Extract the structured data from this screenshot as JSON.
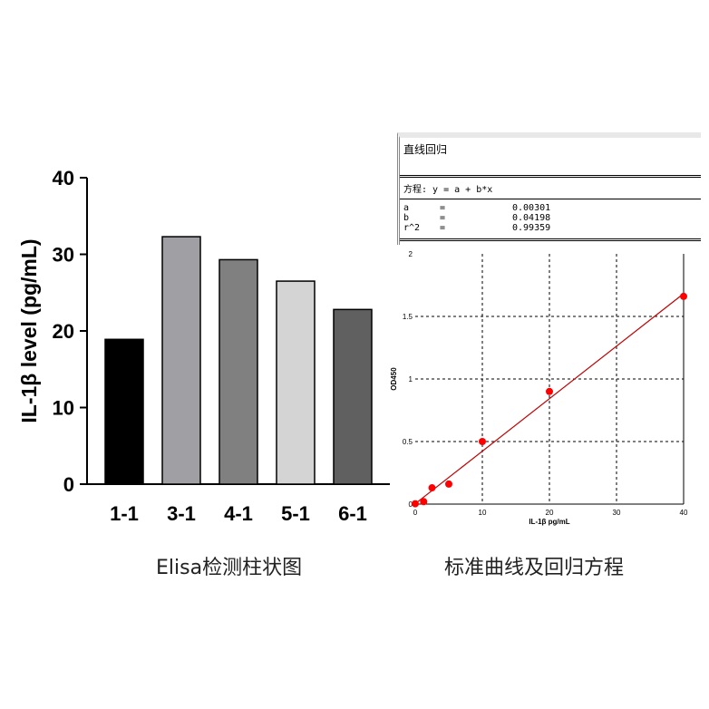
{
  "captions": {
    "left": "Elisa检测柱状图",
    "right": "标准曲线及回归方程"
  },
  "regression_panel": {
    "title": "直线回归",
    "equation": "方程: y = a + b*x",
    "params": [
      {
        "name": "a",
        "eq": "=",
        "value": "0.00301"
      },
      {
        "name": "b",
        "eq": "=",
        "value": "0.04198"
      },
      {
        "name": "r^2",
        "eq": "=",
        "value": "0.99359"
      }
    ]
  },
  "chart_data": [
    {
      "type": "bar",
      "categories": [
        "1-1",
        "3-1",
        "4-1",
        "5-1",
        "6-1"
      ],
      "values": [
        18.9,
        32.3,
        29.3,
        26.5,
        22.8
      ],
      "colors": [
        "#000000",
        "#a0a0a4",
        "#808080",
        "#d4d4d4",
        "#606060"
      ],
      "ylabel": "IL-1β level (pg/mL)",
      "ylim": [
        0,
        40
      ],
      "yticks": [
        0,
        10,
        20,
        30,
        40
      ],
      "grid": false
    },
    {
      "type": "scatter",
      "x": [
        0,
        1.25,
        2.5,
        5,
        10,
        20,
        40
      ],
      "y": [
        0.003,
        0.02,
        0.13,
        0.16,
        0.5,
        0.9,
        1.66
      ],
      "fit": {
        "a": 0.00301,
        "b": 0.04198
      },
      "point_color": "#ff0000",
      "line_color": "#c00000",
      "xlabel": "IL-1β pg/mL",
      "ylabel": "OD450",
      "xlim": [
        0,
        40
      ],
      "ylim": [
        0,
        2
      ],
      "xticks": [
        "0",
        "10",
        "20",
        "30",
        "40"
      ],
      "yticks": [
        "0",
        "0.5",
        "1",
        "1.5",
        "2"
      ],
      "grid": true
    }
  ]
}
